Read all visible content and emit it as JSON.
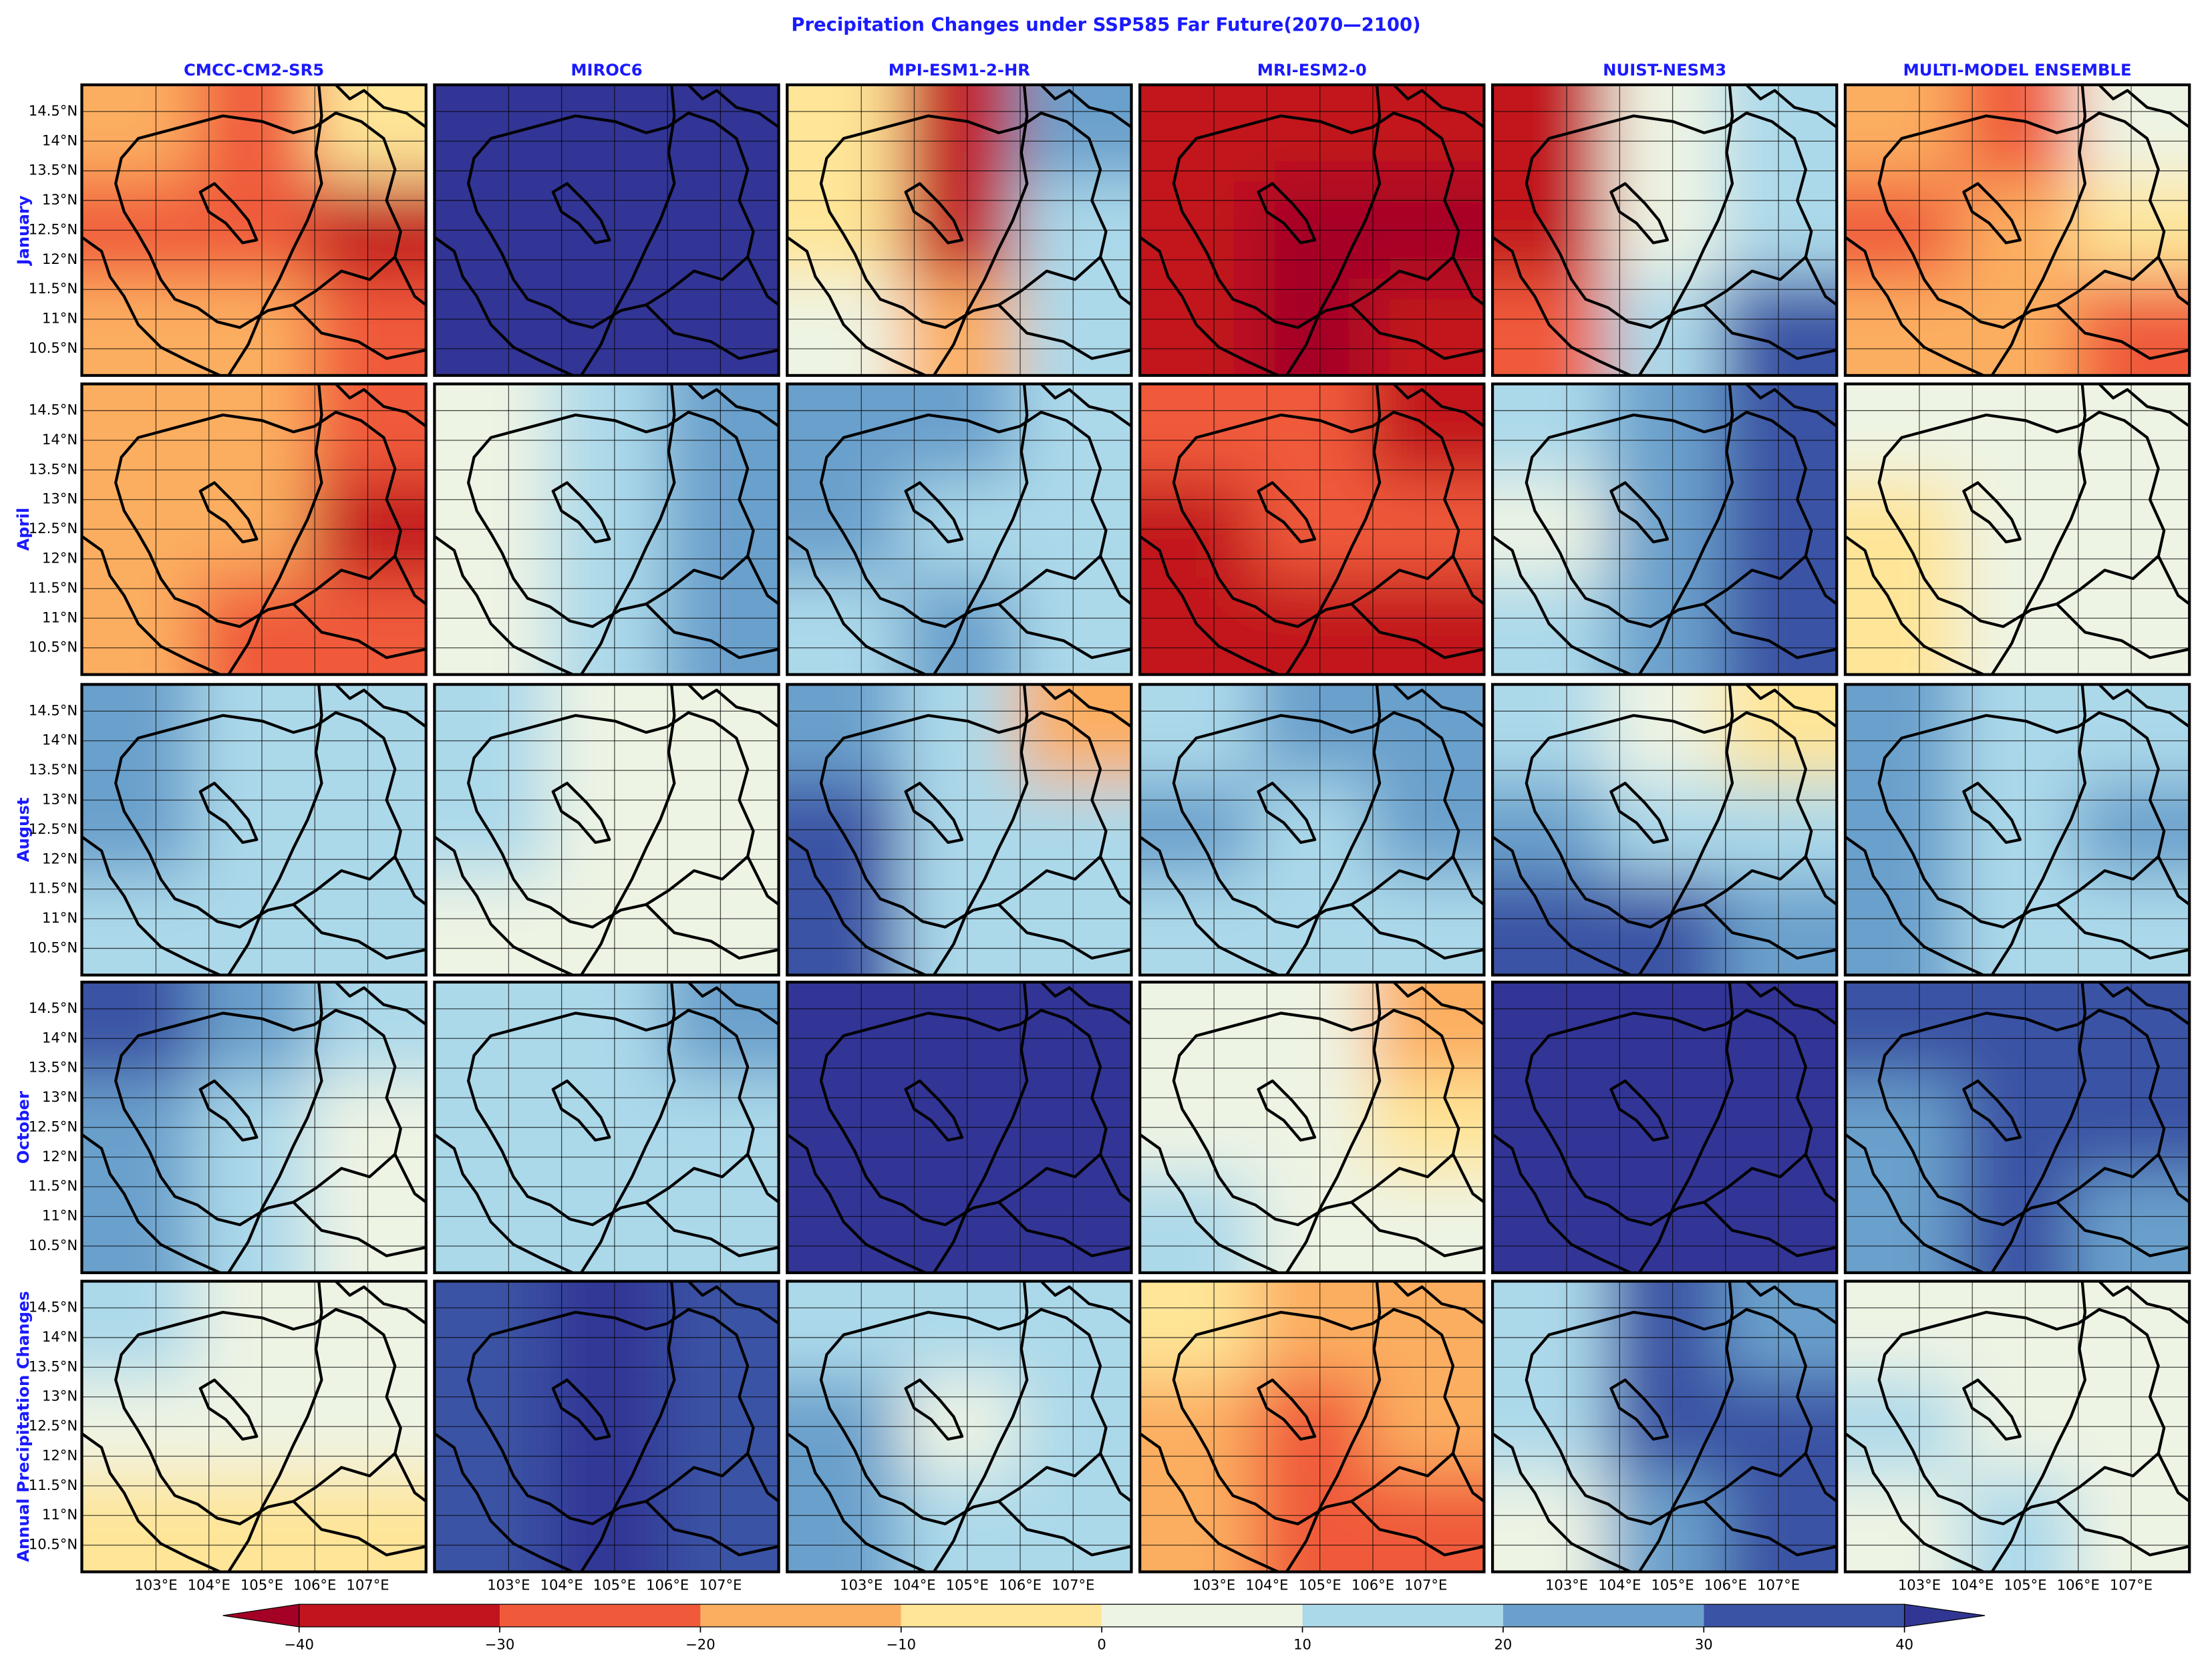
{
  "chart_data": {
    "type": "contour-map-grid",
    "title": "Precipitation Changes under SSP585 Far Future(2070—2100)",
    "columns": [
      "CMCC-CM2-SR5",
      "MIROC6",
      "MPI-ESM1-2-HR",
      "MRI-ESM2-0",
      "NUIST-NESM3",
      "MULTI-MODEL ENSEMBLE"
    ],
    "rows": [
      "January",
      "April",
      "August",
      "October",
      "Annual Precipitation Changes"
    ],
    "xlim": [
      101.6,
      108.1
    ],
    "ylim": [
      10.05,
      14.95
    ],
    "lat_ticks": [
      {
        "value": 10.5,
        "label": "10.5°N"
      },
      {
        "value": 11,
        "label": "11°N"
      },
      {
        "value": 11.5,
        "label": "11.5°N"
      },
      {
        "value": 12,
        "label": "12°N"
      },
      {
        "value": 12.5,
        "label": "12.5°N"
      },
      {
        "value": 13,
        "label": "13°N"
      },
      {
        "value": 13.5,
        "label": "13.5°N"
      },
      {
        "value": 14,
        "label": "14°N"
      },
      {
        "value": 14.5,
        "label": "14.5°N"
      }
    ],
    "lon_ticks": [
      {
        "value": 103,
        "label": "103°E"
      },
      {
        "value": 104,
        "label": "104°E"
      },
      {
        "value": 105,
        "label": "105°E"
      },
      {
        "value": 106,
        "label": "106°E"
      },
      {
        "value": 107,
        "label": "107°E"
      }
    ],
    "colorbar": {
      "ticks": [
        {
          "value": -40,
          "label": "−40"
        },
        {
          "value": -30,
          "label": "−30"
        },
        {
          "value": -20,
          "label": "−20"
        },
        {
          "value": -10,
          "label": "−10"
        },
        0,
        10,
        20,
        30,
        40
      ],
      "colors": [
        "#c2141f",
        "#f05a3a",
        "#fcae60",
        "#fee597",
        "#eef4e4",
        "#acd9ea",
        "#6ba0cc",
        "#3a53a4"
      ],
      "extend_colors": [
        "#a50026",
        "#313695"
      ]
    },
    "panels": [
      [
        [
          [
            -15,
            -25,
            -5
          ],
          [
            -25,
            -25,
            -30
          ],
          [
            -15,
            -15,
            -25
          ]
        ],
        [
          [
            45,
            45,
            45
          ],
          [
            45,
            45,
            45
          ],
          [
            45,
            45,
            45
          ]
        ],
        [
          [
            -5,
            -35,
            25
          ],
          [
            -5,
            -30,
            20
          ],
          [
            5,
            -15,
            15
          ]
        ],
        [
          [
            -30,
            -35,
            -35
          ],
          [
            -35,
            -45,
            -45
          ],
          [
            -35,
            -45,
            -40
          ]
        ],
        [
          [
            -35,
            5,
            15
          ],
          [
            -30,
            5,
            20
          ],
          [
            -25,
            15,
            35
          ]
        ],
        [
          [
            -15,
            -20,
            10
          ],
          [
            -25,
            -15,
            -5
          ],
          [
            -15,
            -10,
            -20
          ]
        ]
      ],
      [
        [
          [
            -10,
            -15,
            -25
          ],
          [
            -10,
            -15,
            -30
          ],
          [
            -10,
            -20,
            -25
          ]
        ],
        [
          [
            10,
            15,
            25
          ],
          [
            5,
            15,
            30
          ],
          [
            10,
            20,
            30
          ]
        ],
        [
          [
            30,
            25,
            15
          ],
          [
            25,
            20,
            15
          ],
          [
            15,
            25,
            20
          ]
        ],
        [
          [
            -25,
            -25,
            -35
          ],
          [
            -30,
            -25,
            -25
          ],
          [
            -35,
            -40,
            -35
          ]
        ],
        [
          [
            15,
            25,
            35
          ],
          [
            10,
            30,
            35
          ],
          [
            15,
            30,
            35
          ]
        ],
        [
          [
            5,
            5,
            5
          ],
          [
            -5,
            5,
            5
          ],
          [
            -5,
            5,
            5
          ]
        ]
      ],
      [
        [
          [
            30,
            20,
            15
          ],
          [
            25,
            20,
            15
          ],
          [
            20,
            15,
            15
          ]
        ],
        [
          [
            15,
            5,
            5
          ],
          [
            15,
            5,
            5
          ],
          [
            5,
            5,
            10
          ]
        ],
        [
          [
            25,
            15,
            -10
          ],
          [
            35,
            15,
            15
          ],
          [
            35,
            20,
            15
          ]
        ],
        [
          [
            20,
            25,
            30
          ],
          [
            25,
            15,
            25
          ],
          [
            20,
            15,
            20
          ]
        ],
        [
          [
            15,
            5,
            -5
          ],
          [
            25,
            15,
            20
          ],
          [
            35,
            35,
            25
          ]
        ],
        [
          [
            25,
            15,
            15
          ],
          [
            25,
            20,
            25
          ],
          [
            25,
            20,
            15
          ]
        ]
      ],
      [
        [
          [
            35,
            30,
            15
          ],
          [
            25,
            15,
            10
          ],
          [
            25,
            15,
            5
          ]
        ],
        [
          [
            20,
            20,
            25
          ],
          [
            15,
            20,
            20
          ],
          [
            15,
            15,
            15
          ]
        ],
        [
          [
            45,
            45,
            45
          ],
          [
            45,
            45,
            45
          ],
          [
            45,
            45,
            45
          ]
        ],
        [
          [
            5,
            5,
            -15
          ],
          [
            5,
            5,
            -5
          ],
          [
            15,
            5,
            5
          ]
        ],
        [
          [
            45,
            45,
            45
          ],
          [
            45,
            45,
            45
          ],
          [
            45,
            45,
            45
          ]
        ],
        [
          [
            35,
            35,
            35
          ],
          [
            30,
            35,
            35
          ],
          [
            25,
            35,
            30
          ]
        ]
      ],
      [
        [
          [
            15,
            5,
            5
          ],
          [
            5,
            5,
            5
          ],
          [
            -5,
            -5,
            -5
          ]
        ],
        [
          [
            35,
            45,
            35
          ],
          [
            35,
            45,
            35
          ],
          [
            35,
            45,
            35
          ]
        ],
        [
          [
            20,
            15,
            20
          ],
          [
            25,
            5,
            15
          ],
          [
            30,
            15,
            20
          ]
        ],
        [
          [
            -5,
            -10,
            -15
          ],
          [
            -10,
            -20,
            -15
          ],
          [
            -10,
            -20,
            -25
          ]
        ],
        [
          [
            20,
            35,
            25
          ],
          [
            15,
            35,
            35
          ],
          [
            10,
            25,
            35
          ]
        ],
        [
          [
            5,
            5,
            5
          ],
          [
            15,
            5,
            5
          ],
          [
            5,
            15,
            5
          ]
        ]
      ]
    ]
  }
}
